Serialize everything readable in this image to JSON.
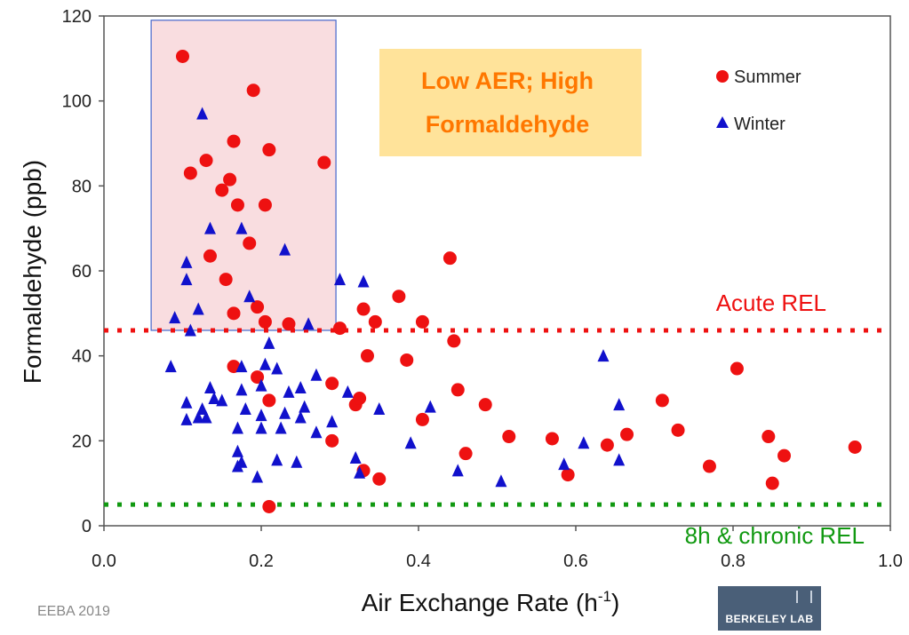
{
  "chart_data": {
    "type": "scatter",
    "xlabel": "Air Exchange Rate (h",
    "xlabel_sup": "-1",
    "xlabel_end": ")",
    "ylabel": "Formaldehyde (ppb)",
    "xlim": [
      0,
      1.0
    ],
    "ylim": [
      0,
      120
    ],
    "x_ticks": [
      "0.0",
      "0.2",
      "0.4",
      "0.6",
      "0.8",
      "1.0"
    ],
    "y_ticks": [
      "0",
      "20",
      "40",
      "60",
      "80",
      "100",
      "120"
    ],
    "legend_position": "top-right",
    "series": [
      {
        "name": "Summer",
        "marker": "circle",
        "color": "#ee1111",
        "points": [
          [
            0.1,
            110.5
          ],
          [
            0.19,
            102.5
          ],
          [
            0.11,
            83
          ],
          [
            0.13,
            86
          ],
          [
            0.165,
            90.5
          ],
          [
            0.21,
            88.5
          ],
          [
            0.28,
            85.5
          ],
          [
            0.15,
            79
          ],
          [
            0.16,
            81.5
          ],
          [
            0.17,
            75.5
          ],
          [
            0.205,
            75.5
          ],
          [
            0.185,
            66.5
          ],
          [
            0.135,
            63.5
          ],
          [
            0.155,
            58
          ],
          [
            0.195,
            51.5
          ],
          [
            0.165,
            50
          ],
          [
            0.205,
            48
          ],
          [
            0.235,
            47.5
          ],
          [
            0.3,
            46.5
          ],
          [
            0.33,
            51
          ],
          [
            0.345,
            48
          ],
          [
            0.375,
            54
          ],
          [
            0.405,
            48
          ],
          [
            0.44,
            63
          ],
          [
            0.445,
            43.5
          ],
          [
            0.335,
            40
          ],
          [
            0.385,
            39
          ],
          [
            0.165,
            37.5
          ],
          [
            0.195,
            35
          ],
          [
            0.21,
            29.5
          ],
          [
            0.29,
            33.5
          ],
          [
            0.32,
            28.5
          ],
          [
            0.325,
            30
          ],
          [
            0.45,
            32
          ],
          [
            0.405,
            25
          ],
          [
            0.485,
            28.5
          ],
          [
            0.29,
            20
          ],
          [
            0.33,
            13
          ],
          [
            0.35,
            11
          ],
          [
            0.46,
            17
          ],
          [
            0.515,
            21
          ],
          [
            0.57,
            20.5
          ],
          [
            0.59,
            12
          ],
          [
            0.64,
            19
          ],
          [
            0.665,
            21.5
          ],
          [
            0.71,
            29.5
          ],
          [
            0.73,
            22.5
          ],
          [
            0.77,
            14
          ],
          [
            0.805,
            37
          ],
          [
            0.845,
            21
          ],
          [
            0.85,
            10
          ],
          [
            0.865,
            16.5
          ],
          [
            0.955,
            18.5
          ],
          [
            0.21,
            4.5
          ]
        ]
      },
      {
        "name": "Winter",
        "marker": "triangle",
        "color": "#1111cc",
        "points": [
          [
            0.125,
            97
          ],
          [
            0.135,
            70
          ],
          [
            0.175,
            70
          ],
          [
            0.23,
            65
          ],
          [
            0.105,
            62
          ],
          [
            0.105,
            58
          ],
          [
            0.12,
            51
          ],
          [
            0.09,
            49
          ],
          [
            0.11,
            46
          ],
          [
            0.185,
            54
          ],
          [
            0.26,
            47.5
          ],
          [
            0.3,
            58
          ],
          [
            0.33,
            57.5
          ],
          [
            0.21,
            43
          ],
          [
            0.085,
            37.5
          ],
          [
            0.175,
            37.5
          ],
          [
            0.205,
            38
          ],
          [
            0.22,
            37
          ],
          [
            0.2,
            33
          ],
          [
            0.235,
            31.5
          ],
          [
            0.27,
            35.5
          ],
          [
            0.25,
            32.5
          ],
          [
            0.31,
            31.5
          ],
          [
            0.135,
            32.5
          ],
          [
            0.14,
            30
          ],
          [
            0.175,
            32
          ],
          [
            0.105,
            29
          ],
          [
            0.125,
            27.5
          ],
          [
            0.12,
            25.5
          ],
          [
            0.105,
            25
          ],
          [
            0.13,
            25.5
          ],
          [
            0.15,
            29.5
          ],
          [
            0.17,
            23
          ],
          [
            0.18,
            27.5
          ],
          [
            0.2,
            26
          ],
          [
            0.23,
            26.5
          ],
          [
            0.255,
            28
          ],
          [
            0.25,
            25.5
          ],
          [
            0.29,
            24.5
          ],
          [
            0.2,
            23
          ],
          [
            0.225,
            23
          ],
          [
            0.27,
            22
          ],
          [
            0.35,
            27.5
          ],
          [
            0.415,
            28
          ],
          [
            0.39,
            19.5
          ],
          [
            0.17,
            14
          ],
          [
            0.175,
            15
          ],
          [
            0.17,
            17.5
          ],
          [
            0.195,
            11.5
          ],
          [
            0.22,
            15.5
          ],
          [
            0.245,
            15
          ],
          [
            0.32,
            16
          ],
          [
            0.325,
            12.5
          ],
          [
            0.45,
            13
          ],
          [
            0.505,
            10.5
          ],
          [
            0.585,
            14.5
          ],
          [
            0.61,
            19.5
          ],
          [
            0.635,
            40
          ],
          [
            0.655,
            28.5
          ],
          [
            0.655,
            15.5
          ]
        ]
      }
    ],
    "reference_lines": [
      {
        "label": "Acute REL",
        "y": 46,
        "color": "#ee1111"
      },
      {
        "label": "8h & chronic REL",
        "y": 5,
        "color": "#119911"
      }
    ],
    "highlight_region": {
      "x_range": [
        0.06,
        0.295
      ],
      "y_range": [
        46,
        119
      ],
      "fill": "#f9dde0",
      "border": "#4466cc"
    },
    "callout": {
      "lines": [
        "Low AER; High",
        "Formaldehyde"
      ],
      "text_color": "#ff7700",
      "background": "#ffe39a"
    }
  },
  "footer": {
    "left_text": "EEBA 2019",
    "logo_text": "BERKELEY LAB"
  }
}
